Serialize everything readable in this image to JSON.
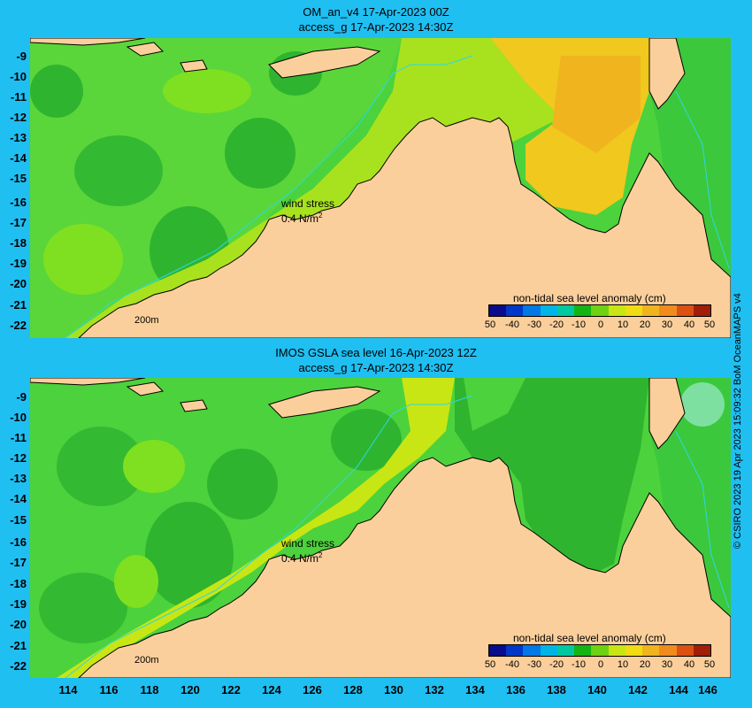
{
  "panels": [
    {
      "title_line1": "OM_an_v4  17-Apr-2023 00Z",
      "title_line2": "access_g 17-Apr-2023 14:30Z"
    },
    {
      "title_line1": "IMOS GSLA sea level  16-Apr-2023 12Z",
      "title_line2": "access_g 17-Apr-2023 14:30Z"
    }
  ],
  "lat_ticks": [
    "-9",
    "-10",
    "-11",
    "-12",
    "-13",
    "-14",
    "-15",
    "-16",
    "-17",
    "-18",
    "-19",
    "-20",
    "-21",
    "-22"
  ],
  "lon_ticks": [
    "114",
    "116",
    "118",
    "120",
    "122",
    "124",
    "126",
    "128",
    "130",
    "132",
    "134",
    "136",
    "138",
    "140",
    "142",
    "144",
    "146"
  ],
  "legend": {
    "title": "non-tidal sea level anomaly (cm)",
    "ticks": [
      "50",
      "-40",
      "-30",
      "-20",
      "-10",
      "0",
      "10",
      "20",
      "30",
      "40",
      "50"
    ],
    "colors": [
      "#0a0a8c",
      "#0037c8",
      "#0078e6",
      "#00b4e6",
      "#00c8a0",
      "#14b414",
      "#6ed214",
      "#c8e614",
      "#f0dc14",
      "#f0b41e",
      "#f08c1e",
      "#dc5014",
      "#a01e0a"
    ]
  },
  "wind_label": "wind stress",
  "wind_value": "0.4 N/m",
  "wind_superscript": "2",
  "scale_label": "200m",
  "credit": "© CSIRO 2023    19 Apr 2023 15:09:32 BoM OceanMAPS v4",
  "colors": {
    "background": "#1fbff2",
    "land": "#fbcf9b",
    "sea_green": "#3cc83c",
    "sea_yellow": "#f0c81e"
  }
}
